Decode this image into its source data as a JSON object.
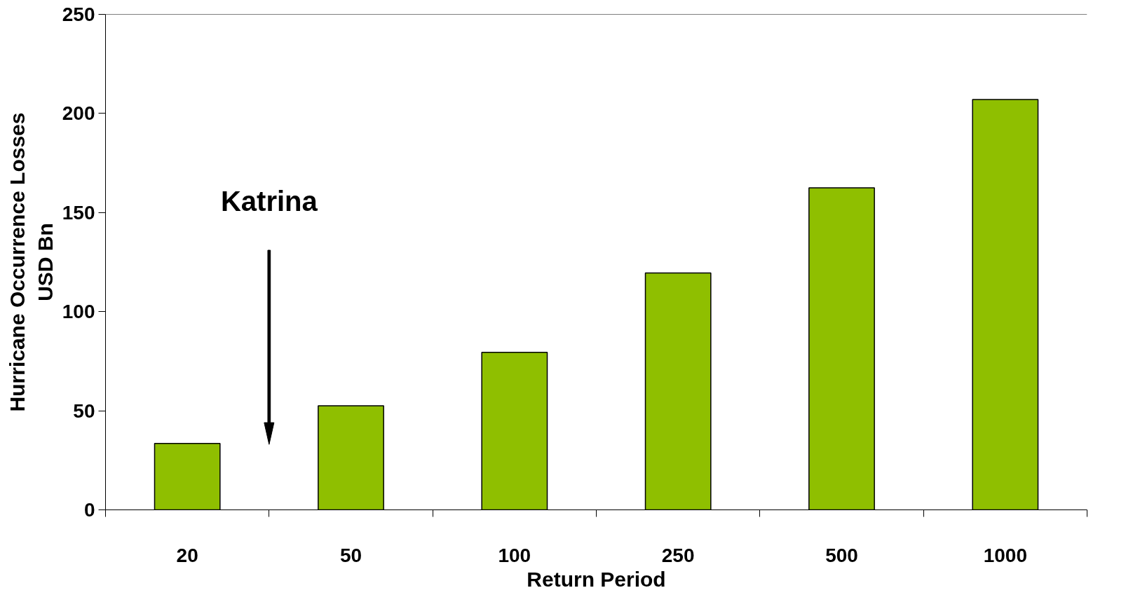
{
  "chart_data": {
    "type": "bar",
    "xlabel": "Return Period",
    "ylabel": "Hurricane Occurrence Losses\nUSD Bn",
    "categories": [
      "20",
      "50",
      "100",
      "250",
      "500",
      "1000"
    ],
    "values": [
      33.5,
      52.5,
      79.5,
      119.5,
      162.5,
      207
    ],
    "color": "#8fbf00",
    "ylim": [
      0,
      250
    ],
    "yticks": [
      0,
      50,
      100,
      150,
      200,
      250
    ],
    "grid": false,
    "annotations": [
      "Katrina"
    ]
  }
}
